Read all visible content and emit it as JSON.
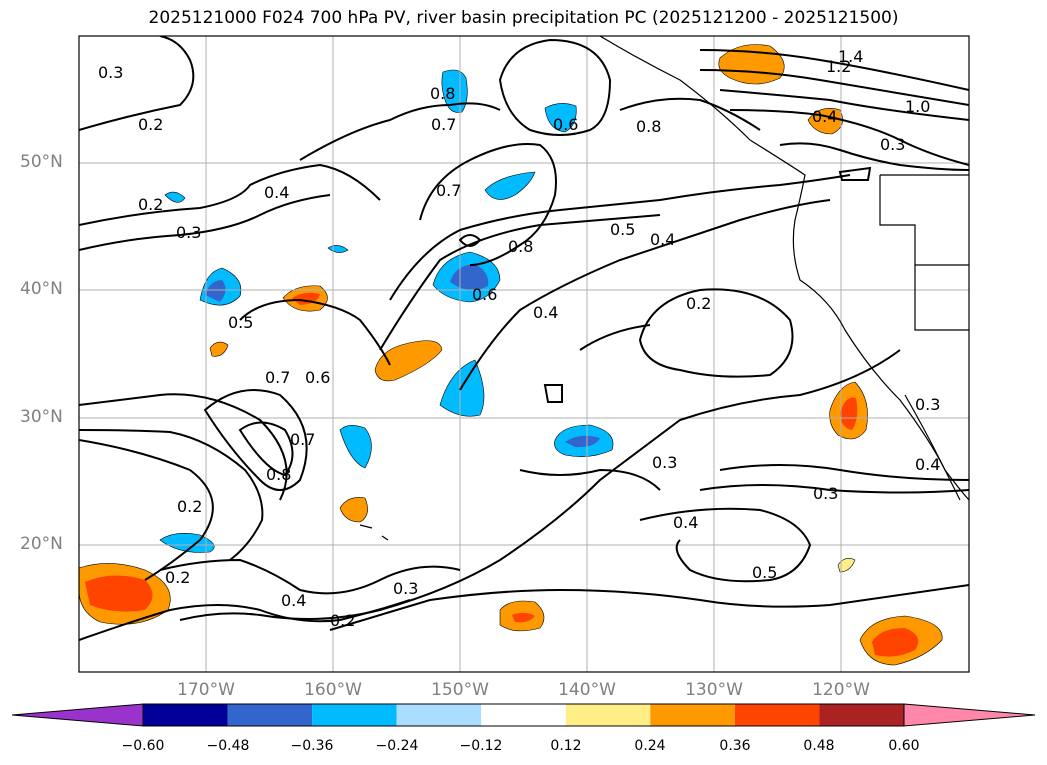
{
  "title": "2025121000 F024 700 hPa PV, river basin precipitation PC (2025121200 - 2025121500)",
  "lat_labels": [
    "50°N",
    "40°N",
    "30°N",
    "20°N"
  ],
  "lon_labels": [
    "170°W",
    "160°W",
    "150°W",
    "140°W",
    "130°W",
    "120°W"
  ],
  "colorbar": {
    "tick_labels": [
      "−0.60",
      "−0.48",
      "−0.36",
      "−0.24",
      "−0.12",
      "0.12",
      "0.24",
      "0.36",
      "0.48",
      "0.60"
    ],
    "colors": [
      "#9933cc",
      "#000099",
      "#3366cc",
      "#00bbff",
      "#aaddff",
      "#ffffff",
      "#ffee88",
      "#ff9900",
      "#ff4400",
      "#aa2222",
      "#ff88aa"
    ]
  },
  "contour_labels": [
    "0.3",
    "0.2",
    "0.2",
    "0.3",
    "0.4",
    "0.5",
    "0.7",
    "0.6",
    "0.7",
    "0.8",
    "0.2",
    "0.2",
    "0.4",
    "0.3",
    "0.2",
    "0.8",
    "0.7",
    "0.6",
    "0.7",
    "0.8",
    "0.6",
    "0.8",
    "0.5",
    "0.4",
    "0.4",
    "0.2",
    "0.3",
    "0.4",
    "0.5",
    "0.3",
    "1.4",
    "1.2",
    "1.0",
    "0.4",
    "0.3",
    "0.3",
    "0.4"
  ]
}
